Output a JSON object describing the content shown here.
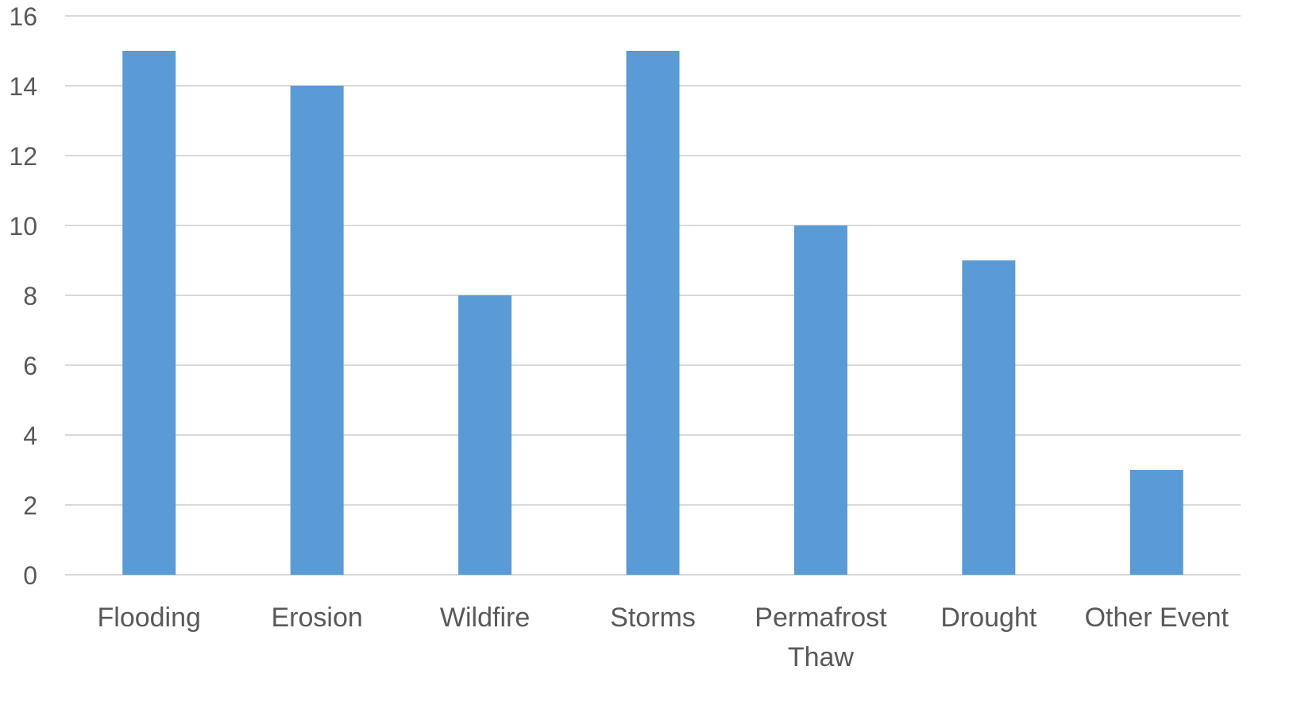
{
  "chart_data": {
    "type": "bar",
    "categories": [
      [
        "Flooding"
      ],
      [
        "Erosion"
      ],
      [
        "Wildfire"
      ],
      [
        "Storms"
      ],
      [
        "Permafrost",
        "Thaw"
      ],
      [
        "Drought"
      ],
      [
        "Other Event"
      ]
    ],
    "values": [
      15,
      14,
      8,
      15,
      10,
      9,
      3
    ],
    "ylim": [
      0,
      16
    ],
    "y_ticks": [
      0,
      2,
      4,
      6,
      8,
      10,
      12,
      14,
      16
    ],
    "grid": true,
    "legend": "none",
    "title": "",
    "xlabel": "",
    "ylabel": "",
    "colors": {
      "bar": "#5b9bd5",
      "grid": "#d9d9d9",
      "axis_line": "#d9d9d9",
      "tick_text": "#595959"
    }
  }
}
